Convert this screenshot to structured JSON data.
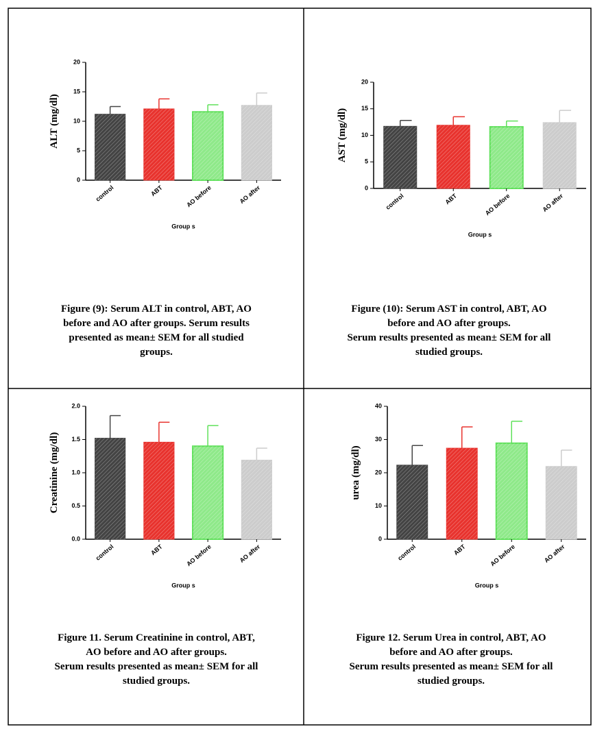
{
  "chart_data": [
    {
      "type": "bar",
      "ylabel": "ALT (mg/dl)",
      "xlabel": "Group s",
      "categories": [
        "control",
        "ABT",
        "AO before",
        "AO after"
      ],
      "values": [
        11.2,
        12.1,
        11.6,
        12.7
      ],
      "errors": [
        1.3,
        1.7,
        1.2,
        2.1
      ],
      "colors": [
        "#444444",
        "#e8332e",
        "#5fe05a",
        "#cccccc"
      ],
      "ylim": [
        0,
        20
      ],
      "yticks": [
        0,
        5,
        10,
        15,
        20
      ],
      "caption": [
        "Figure (9): Serum  ALT in control, ABT, AO",
        "before and AO after groups.       Serum results",
        "presented as mean± SEM for all studied",
        "groups."
      ]
    },
    {
      "type": "bar",
      "ylabel": "AST (mg/dl)",
      "xlabel": "Group s",
      "categories": [
        "control",
        "ABT",
        "AO before",
        "AO after"
      ],
      "values": [
        11.7,
        11.9,
        11.6,
        12.4
      ],
      "errors": [
        1.1,
        1.6,
        1.1,
        2.3
      ],
      "colors": [
        "#444444",
        "#e8332e",
        "#5fe05a",
        "#cccccc"
      ],
      "ylim": [
        0,
        20
      ],
      "yticks": [
        0,
        5,
        10,
        15,
        20
      ],
      "caption": [
        "Figure (10): Serum AST in control, ABT, AO",
        "before and AO after groups.",
        "Serum results presented as mean± SEM for all",
        "studied groups."
      ]
    },
    {
      "type": "bar",
      "ylabel": "Creatinine (mg/dl)",
      "xlabel": "Group s",
      "categories": [
        "control",
        "ABT",
        "AO before",
        "AO after"
      ],
      "values": [
        1.52,
        1.46,
        1.4,
        1.19
      ],
      "errors": [
        0.34,
        0.3,
        0.31,
        0.18
      ],
      "colors": [
        "#444444",
        "#e8332e",
        "#5fe05a",
        "#cccccc"
      ],
      "ylim": [
        0,
        2
      ],
      "yticks": [
        {
          "value": 0,
          "label": "0.0"
        },
        0.5,
        {
          "value": 1,
          "label": "1.0"
        },
        1.5,
        {
          "value": 2,
          "label": "2.0"
        }
      ],
      "caption": [
        "Figure 11. Serum Creatinine in control, ABT,",
        "AO before and AO after groups.",
        "Serum results presented as mean± SEM for all",
        "studied groups."
      ]
    },
    {
      "type": "bar",
      "ylabel": "urea (mg/dl)",
      "xlabel": "Group s",
      "categories": [
        "control",
        "ABT",
        "AO before",
        "AO after"
      ],
      "values": [
        22.3,
        27.4,
        28.9,
        21.9
      ],
      "errors": [
        5.9,
        6.4,
        6.6,
        4.9
      ],
      "colors": [
        "#444444",
        "#e8332e",
        "#5fe05a",
        "#cccccc"
      ],
      "ylim": [
        0,
        40
      ],
      "yticks": [
        0,
        10,
        20,
        30,
        40
      ],
      "caption": [
        "Figure 12. Serum Urea in control, ABT, AO",
        "before and AO after groups.",
        "Serum results presented as mean± SEM for all",
        "studied groups."
      ]
    }
  ]
}
